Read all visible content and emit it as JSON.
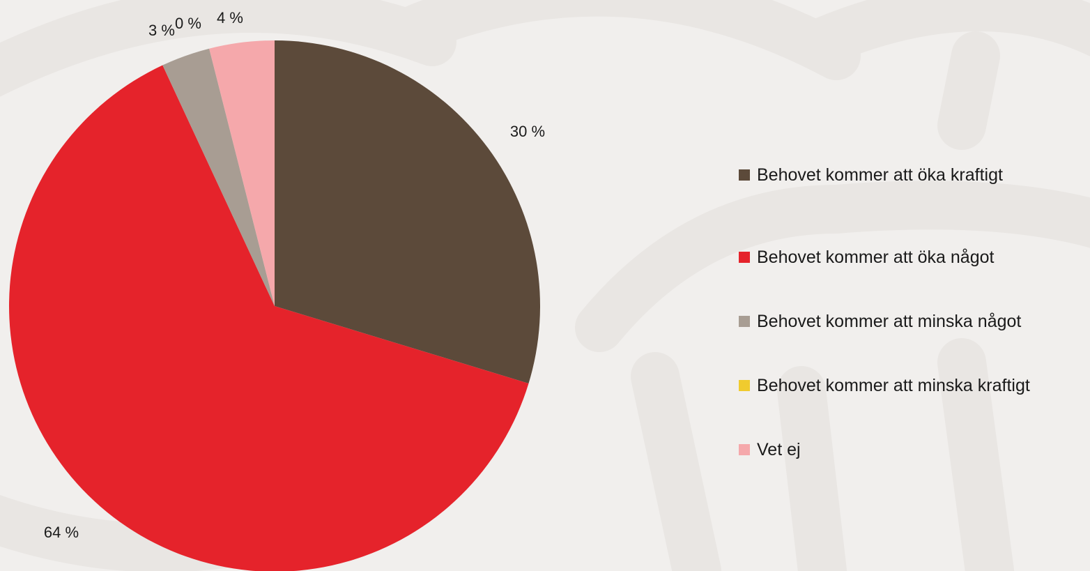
{
  "chart_data": {
    "type": "pie",
    "categories": [
      "Behovet kommer att öka kraftigt",
      "Behovet kommer att öka något",
      "Behovet kommer att minska något",
      "Behovet kommer att minska kraftigt",
      "Vet ej"
    ],
    "values": [
      30,
      64,
      3,
      0,
      4
    ],
    "labels": [
      "30 %",
      "64 %",
      "3 %",
      "0 %",
      "4 %"
    ],
    "colors": [
      "#5c4a3a",
      "#e5232b",
      "#a89d93",
      "#f0cb2e",
      "#f5a8ab"
    ],
    "legend_position": "right",
    "start_angle": "12 o'clock",
    "direction": "clockwise"
  }
}
